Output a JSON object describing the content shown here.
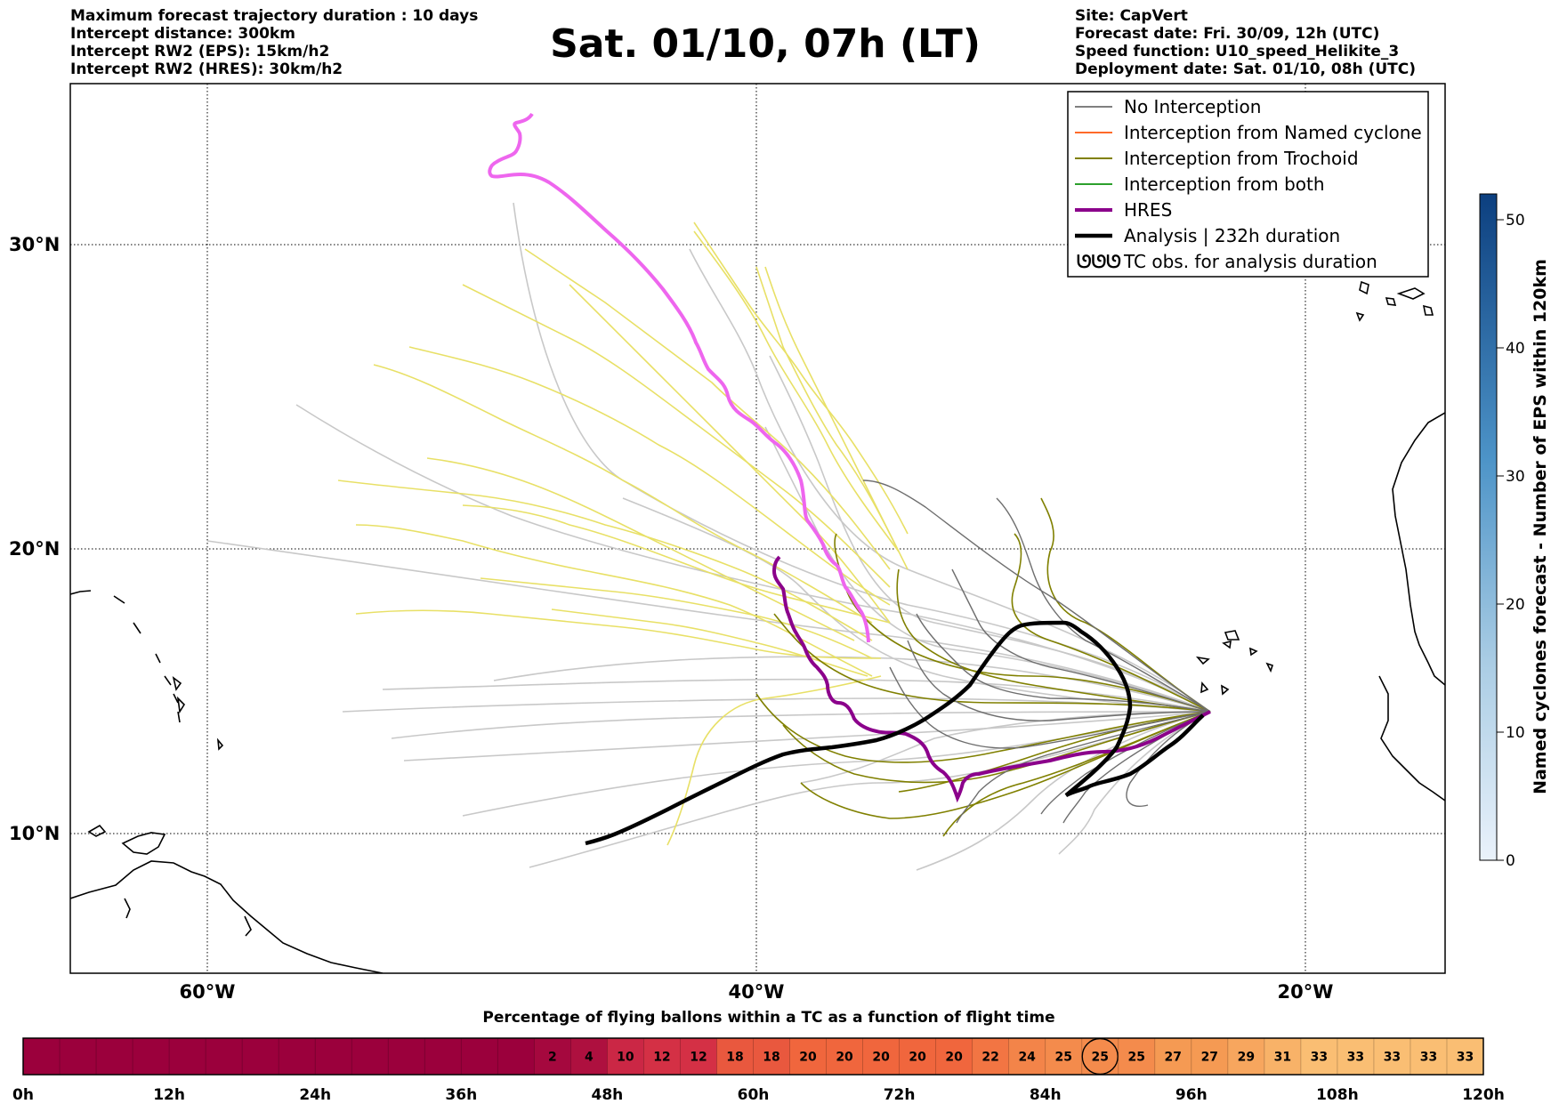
{
  "header_left": [
    "Maximum forecast trajectory duration : 10 days",
    "Intercept distance: 300km",
    "Intercept RW2 (EPS):  15km/h2",
    "Intercept RW2 (HRES): 30km/h2"
  ],
  "title": "Sat. 01/10, 07h (LT)",
  "header_right": [
    "Site: CapVert",
    "Forecast date: Fri. 30/09, 12h (UTC)",
    "Speed function: U10_speed_Helikite_3",
    "Deployment date: Sat. 01/10, 08h (UTC)"
  ],
  "map": {
    "lat_labels": [
      "30°N",
      "20°N",
      "10°N"
    ],
    "lon_labels": [
      "60°W",
      "40°W",
      "20°W"
    ]
  },
  "legend": {
    "items": [
      {
        "label": "No Interception",
        "color": "#808080"
      },
      {
        "label": "Interception from Named cyclone",
        "color": "#ff6a2a"
      },
      {
        "label": "Interception from Trochoid",
        "color": "#808000"
      },
      {
        "label": "Interception from both",
        "color": "#2ca02c"
      },
      {
        "label": "HRES",
        "color": "#8b008b"
      },
      {
        "label": "Analysis | 232h duration",
        "color": "#000000"
      },
      {
        "label": "TC obs. for analysis duration",
        "color": "#000000"
      }
    ],
    "tc_symbol": "ᘎᘎᘎ"
  },
  "colorbar": {
    "label": "Named cyclones forecast - Number of EPS within 120km",
    "ticks": [
      "0",
      "10",
      "20",
      "30",
      "40",
      "50"
    ]
  },
  "flight_bar": {
    "title": "Percentage of flying ballons within a TC as a function of flight time",
    "time_ticks": [
      "0h",
      "12h",
      "24h",
      "36h",
      "48h",
      "60h",
      "72h",
      "84h",
      "96h",
      "108h",
      "120h"
    ],
    "values": [
      "2",
      "4",
      "10",
      "12",
      "12",
      "18",
      "18",
      "20",
      "20",
      "20",
      "20",
      "20",
      "22",
      "24",
      "25",
      "25",
      "25",
      "27",
      "27",
      "29",
      "31",
      "33",
      "33",
      "33",
      "33",
      "33"
    ],
    "highlight_value": "25"
  },
  "colors": {
    "eps_plain": "#c8c8c8",
    "eps_trochoid": "#e8e066",
    "hres_forecast": "#ee66ee",
    "hres_intercept": "#8b008b",
    "analysis": "#000000"
  }
}
